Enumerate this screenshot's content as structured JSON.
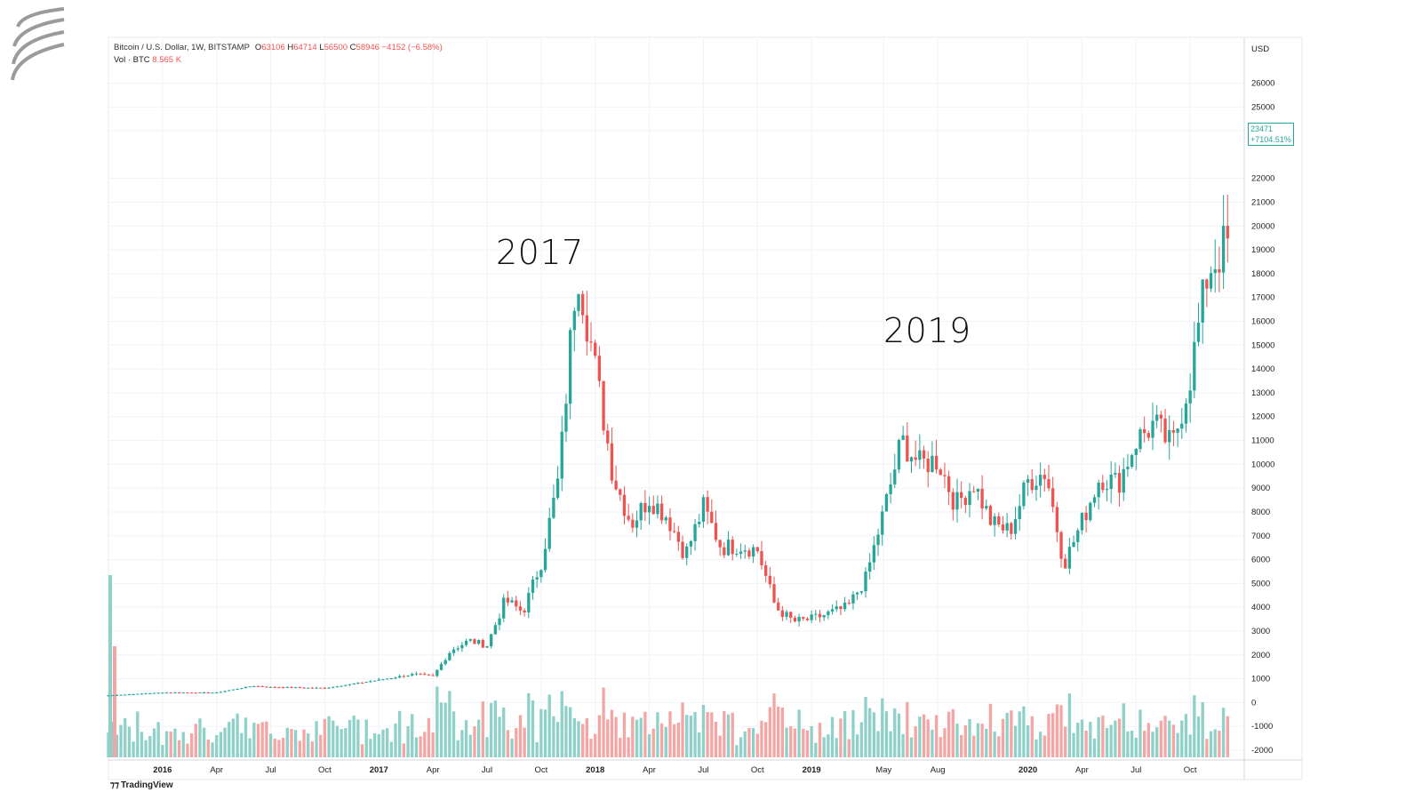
{
  "header": {
    "symbol": "Bitcoin / U.S. Dollar, 1W, BITSTAMP",
    "open_label": "O",
    "open": "63106",
    "high_label": "H",
    "high": "64714",
    "low_label": "L",
    "low": "56500",
    "close_label": "C",
    "close": "58946",
    "change": "−4152 (−6.58%)",
    "vol_label": "Vol · BTC",
    "vol": "8.565 K"
  },
  "price_scale_label": "USD",
  "last_price": {
    "value": "23471",
    "change": "+7104.51%"
  },
  "annotations": {
    "a2017": "2017",
    "a2019": "2019"
  },
  "brand": "TradingView",
  "colors": {
    "up": "#26a69a",
    "down": "#ef5350",
    "up_vol": "#8fd1c8",
    "down_vol": "#f4a6a4",
    "grid": "#f0f3fa"
  },
  "chart_data": {
    "type": "candlestick",
    "y_ticks": [
      26000,
      25000,
      24000,
      22000,
      21000,
      20000,
      19000,
      18000,
      17000,
      16000,
      15000,
      14000,
      13000,
      12000,
      11000,
      10000,
      9000,
      8000,
      7000,
      6000,
      5000,
      4000,
      3000,
      2000,
      1000,
      0,
      -1000,
      -2000
    ],
    "ylim": [
      -2000,
      26800
    ],
    "x_ticks": [
      {
        "label": "2016",
        "bold": true,
        "date": "2016-01"
      },
      {
        "label": "Apr",
        "bold": false,
        "date": "2016-04"
      },
      {
        "label": "Jul",
        "bold": false,
        "date": "2016-07"
      },
      {
        "label": "Oct",
        "bold": false,
        "date": "2016-10"
      },
      {
        "label": "2017",
        "bold": true,
        "date": "2017-01"
      },
      {
        "label": "Apr",
        "bold": false,
        "date": "2017-04"
      },
      {
        "label": "Jul",
        "bold": false,
        "date": "2017-07"
      },
      {
        "label": "Oct",
        "bold": false,
        "date": "2017-10"
      },
      {
        "label": "2018",
        "bold": true,
        "date": "2018-01"
      },
      {
        "label": "Apr",
        "bold": false,
        "date": "2018-04"
      },
      {
        "label": "Jul",
        "bold": false,
        "date": "2018-07"
      },
      {
        "label": "Oct",
        "bold": false,
        "date": "2018-10"
      },
      {
        "label": "2019",
        "bold": true,
        "date": "2019-01"
      },
      {
        "label": "May",
        "bold": false,
        "date": "2019-05"
      },
      {
        "label": "Aug",
        "bold": false,
        "date": "2019-08"
      },
      {
        "label": "2020",
        "bold": true,
        "date": "2020-01"
      },
      {
        "label": "Apr",
        "bold": false,
        "date": "2020-04"
      },
      {
        "label": "Jul",
        "bold": false,
        "date": "2020-07"
      },
      {
        "label": "Oct",
        "bold": false,
        "date": "2020-10"
      }
    ],
    "anchors": [
      {
        "date": "2015-10",
        "close": 300
      },
      {
        "date": "2016-01",
        "close": 420
      },
      {
        "date": "2016-04",
        "close": 420
      },
      {
        "date": "2016-06",
        "close": 700
      },
      {
        "date": "2016-07",
        "close": 650
      },
      {
        "date": "2016-10",
        "close": 610
      },
      {
        "date": "2017-01",
        "close": 950
      },
      {
        "date": "2017-03",
        "close": 1200
      },
      {
        "date": "2017-04",
        "close": 1100
      },
      {
        "date": "2017-05",
        "close": 2200
      },
      {
        "date": "2017-06",
        "close": 2600
      },
      {
        "date": "2017-07",
        "close": 2400
      },
      {
        "date": "2017-08",
        "close": 4300
      },
      {
        "date": "2017-09",
        "close": 3800
      },
      {
        "date": "2017-10",
        "close": 5900
      },
      {
        "date": "2017-11",
        "close": 9500
      },
      {
        "date": "2017-12",
        "close": 18500
      },
      {
        "date": "2018-01",
        "close": 14000
      },
      {
        "date": "2018-02",
        "close": 9500
      },
      {
        "date": "2018-03",
        "close": 7500
      },
      {
        "date": "2018-04",
        "close": 8600
      },
      {
        "date": "2018-05",
        "close": 7800
      },
      {
        "date": "2018-06",
        "close": 6200
      },
      {
        "date": "2018-07",
        "close": 8200
      },
      {
        "date": "2018-08",
        "close": 6500
      },
      {
        "date": "2018-09",
        "close": 6600
      },
      {
        "date": "2018-10",
        "close": 6400
      },
      {
        "date": "2018-11",
        "close": 4000
      },
      {
        "date": "2018-12",
        "close": 3400
      },
      {
        "date": "2019-01",
        "close": 3500
      },
      {
        "date": "2019-03",
        "close": 4000
      },
      {
        "date": "2019-04",
        "close": 5200
      },
      {
        "date": "2019-05",
        "close": 8000
      },
      {
        "date": "2019-06",
        "close": 11000
      },
      {
        "date": "2019-07",
        "close": 10000
      },
      {
        "date": "2019-08",
        "close": 10200
      },
      {
        "date": "2019-09",
        "close": 8300
      },
      {
        "date": "2019-10",
        "close": 9200
      },
      {
        "date": "2019-11",
        "close": 7500
      },
      {
        "date": "2019-12",
        "close": 7200
      },
      {
        "date": "2020-01",
        "close": 9300
      },
      {
        "date": "2020-02",
        "close": 9700
      },
      {
        "date": "2020-03",
        "close": 5800
      },
      {
        "date": "2020-04",
        "close": 7600
      },
      {
        "date": "2020-05",
        "close": 9500
      },
      {
        "date": "2020-06",
        "close": 9200
      },
      {
        "date": "2020-07",
        "close": 11000
      },
      {
        "date": "2020-08",
        "close": 11700
      },
      {
        "date": "2020-09",
        "close": 10700
      },
      {
        "date": "2020-10",
        "close": 13700
      },
      {
        "date": "2020-11",
        "close": 18200
      },
      {
        "date": "2020-12",
        "close": 19200
      }
    ]
  }
}
